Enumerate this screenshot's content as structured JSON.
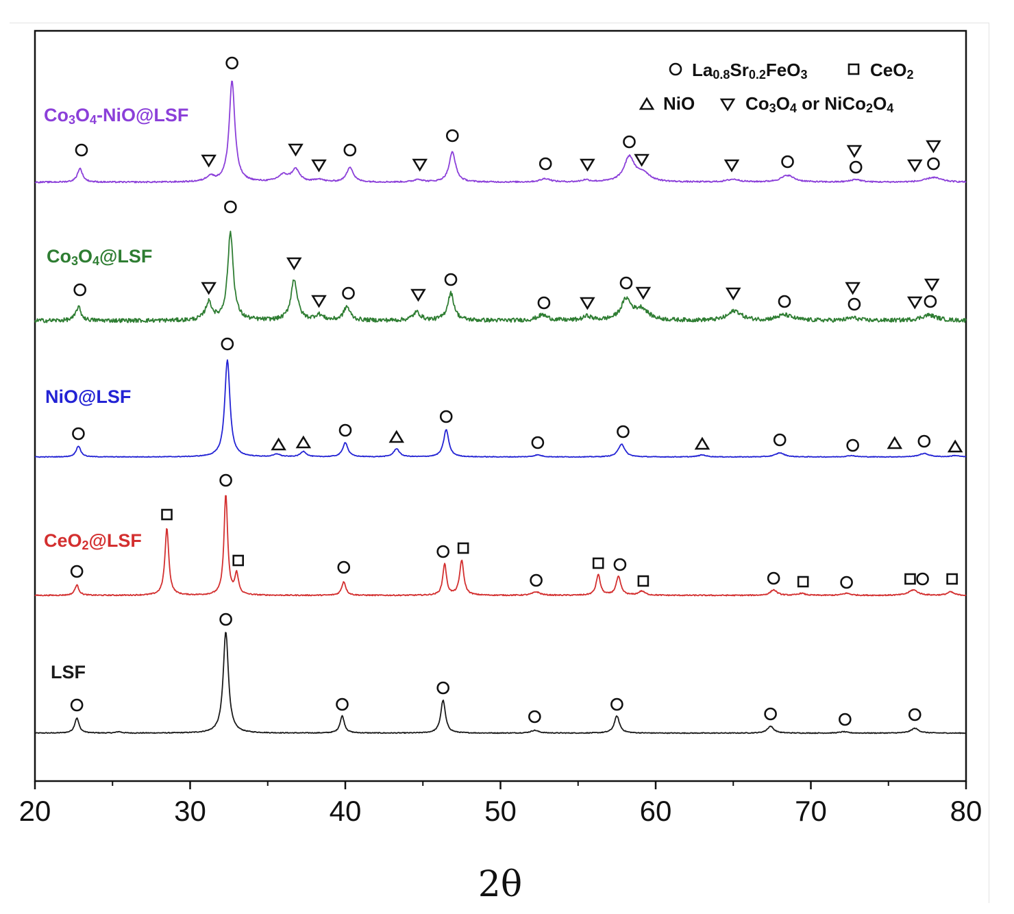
{
  "chart_data": {
    "type": "line",
    "title": "",
    "xlabel": "2θ",
    "ylabel": "",
    "xlim": [
      20,
      80
    ],
    "xticks": [
      "20",
      "30",
      "40",
      "50",
      "60",
      "70",
      "80"
    ],
    "xtick_values": [
      20,
      30,
      40,
      50,
      60,
      70,
      80
    ],
    "grid": false,
    "legend_position": "top-right",
    "legend": [
      {
        "symbol": "circle",
        "label": "La0.8Sr0.2FeO3",
        "parts": [
          {
            "t": "La"
          },
          {
            "t": "0.8",
            "sub": true
          },
          {
            "t": "Sr"
          },
          {
            "t": "0.2",
            "sub": true
          },
          {
            "t": "FeO"
          },
          {
            "t": "3",
            "sub": true
          }
        ]
      },
      {
        "symbol": "square",
        "label": "CeO2",
        "parts": [
          {
            "t": "CeO"
          },
          {
            "t": "2",
            "sub": true
          }
        ]
      },
      {
        "symbol": "triangle-up",
        "label": "NiO",
        "parts": [
          {
            "t": "NiO"
          }
        ]
      },
      {
        "symbol": "triangle-down",
        "label": "Co3O4 or NiCo2O4",
        "parts": [
          {
            "t": "Co"
          },
          {
            "t": "3",
            "sub": true
          },
          {
            "t": "O"
          },
          {
            "t": "4",
            "sub": true
          },
          {
            "t": " or NiCo"
          },
          {
            "t": "2",
            "sub": true
          },
          {
            "t": "O"
          },
          {
            "t": "4",
            "sub": true
          }
        ]
      }
    ],
    "series": [
      {
        "name": "LSF",
        "label": "LSF",
        "label_parts": [
          {
            "t": "LSF"
          }
        ],
        "color": "#1a1a1a",
        "offset": 0,
        "noise": 0.6,
        "peaks": [
          [
            22.7,
            22,
            0.17
          ],
          [
            32.3,
            148,
            0.2
          ],
          [
            39.8,
            25,
            0.17
          ],
          [
            46.3,
            48,
            0.18
          ],
          [
            52.2,
            4,
            0.3
          ],
          [
            57.5,
            25,
            0.2
          ],
          [
            67.4,
            10,
            0.25
          ],
          [
            72.1,
            2,
            0.3
          ],
          [
            76.7,
            7,
            0.3
          ],
          [
            25.4,
            2,
            0.2
          ]
        ],
        "markers": [
          [
            "circle",
            22.7,
            41
          ],
          [
            "circle",
            32.3,
            166
          ],
          [
            "circle",
            39.8,
            42
          ],
          [
            "circle",
            46.3,
            66
          ],
          [
            "circle",
            52.2,
            24
          ],
          [
            "circle",
            57.5,
            42
          ],
          [
            "circle",
            67.4,
            28
          ],
          [
            "circle",
            72.2,
            20
          ],
          [
            "circle",
            76.7,
            27
          ]
        ]
      },
      {
        "name": "CeO2@LSF",
        "label": "CeO2@LSF",
        "label_parts": [
          {
            "t": "CeO"
          },
          {
            "t": "2",
            "sub": true
          },
          {
            "t": "@LSF"
          }
        ],
        "color": "#d32f2f",
        "offset": 201,
        "noise": 0.8,
        "peaks": [
          [
            22.7,
            15,
            0.16
          ],
          [
            28.5,
            98,
            0.15
          ],
          [
            32.3,
            147,
            0.14
          ],
          [
            33.0,
            30,
            0.14
          ],
          [
            39.9,
            20,
            0.16
          ],
          [
            46.4,
            46,
            0.14
          ],
          [
            47.5,
            51,
            0.16
          ],
          [
            52.3,
            5,
            0.3
          ],
          [
            56.3,
            30,
            0.16
          ],
          [
            57.6,
            27,
            0.18
          ],
          [
            59.1,
            6,
            0.25
          ],
          [
            67.6,
            8,
            0.25
          ],
          [
            69.4,
            3,
            0.25
          ],
          [
            72.3,
            3,
            0.3
          ],
          [
            76.6,
            8,
            0.35
          ],
          [
            79.0,
            5,
            0.25
          ]
        ],
        "markers": [
          [
            "circle",
            22.7,
            35
          ],
          [
            "square",
            28.5,
            118
          ],
          [
            "circle",
            32.3,
            168
          ],
          [
            "square",
            33.1,
            51
          ],
          [
            "circle",
            39.9,
            41
          ],
          [
            "circle",
            46.3,
            64
          ],
          [
            "square",
            47.6,
            69
          ],
          [
            "circle",
            52.3,
            22
          ],
          [
            "square",
            56.3,
            47
          ],
          [
            "circle",
            57.7,
            45
          ],
          [
            "square",
            59.2,
            21
          ],
          [
            "circle",
            67.6,
            25
          ],
          [
            "square",
            69.5,
            20
          ],
          [
            "circle",
            72.3,
            19
          ],
          [
            "square",
            76.4,
            24
          ],
          [
            "circle",
            77.2,
            24
          ],
          [
            "square",
            79.1,
            24
          ]
        ]
      },
      {
        "name": "NiO@LSF",
        "label": "NiO@LSF",
        "label_parts": [
          {
            "t": "NiO@LSF"
          }
        ],
        "color": "#2323d4",
        "offset": 403,
        "noise": 0.5,
        "peaks": [
          [
            22.8,
            16,
            0.18
          ],
          [
            32.4,
            142,
            0.2
          ],
          [
            35.6,
            4,
            0.25
          ],
          [
            37.3,
            8,
            0.22
          ],
          [
            40.0,
            21,
            0.2
          ],
          [
            43.3,
            12,
            0.22
          ],
          [
            46.5,
            40,
            0.2
          ],
          [
            52.4,
            3,
            0.3
          ],
          [
            57.8,
            19,
            0.25
          ],
          [
            63.0,
            3,
            0.3
          ],
          [
            68.0,
            6,
            0.35
          ],
          [
            72.6,
            2,
            0.35
          ],
          [
            77.3,
            5,
            0.4
          ],
          [
            79.3,
            2,
            0.3
          ]
        ],
        "markers": [
          [
            "circle",
            22.8,
            34
          ],
          [
            "circle",
            32.4,
            165
          ],
          [
            "triangle-up",
            35.7,
            18
          ],
          [
            "triangle-up",
            37.3,
            21
          ],
          [
            "circle",
            40.0,
            39
          ],
          [
            "triangle-up",
            43.3,
            29
          ],
          [
            "circle",
            46.5,
            59
          ],
          [
            "circle",
            52.4,
            21
          ],
          [
            "circle",
            57.9,
            37
          ],
          [
            "triangle-up",
            63.0,
            19
          ],
          [
            "circle",
            68.0,
            25
          ],
          [
            "circle",
            72.7,
            17
          ],
          [
            "triangle-up",
            75.4,
            20
          ],
          [
            "circle",
            77.3,
            23
          ],
          [
            "triangle-up",
            79.3,
            15
          ]
        ]
      },
      {
        "name": "Co3O4@LSF",
        "label": "Co3O4@LSF",
        "label_parts": [
          {
            "t": "Co"
          },
          {
            "t": "3",
            "sub": true
          },
          {
            "t": "O"
          },
          {
            "t": "4",
            "sub": true
          },
          {
            "t": "@LSF"
          }
        ],
        "color": "#2e7d32",
        "offset": 602,
        "noise": 3.0,
        "peaks": [
          [
            22.8,
            20,
            0.2
          ],
          [
            31.2,
            26,
            0.25
          ],
          [
            32.6,
            128,
            0.22
          ],
          [
            36.7,
            60,
            0.25
          ],
          [
            38.3,
            8,
            0.3
          ],
          [
            40.1,
            20,
            0.25
          ],
          [
            44.6,
            12,
            0.3
          ],
          [
            46.8,
            40,
            0.25
          ],
          [
            52.7,
            8,
            0.4
          ],
          [
            55.6,
            6,
            0.3
          ],
          [
            58.1,
            30,
            0.4
          ],
          [
            59.1,
            16,
            0.5
          ],
          [
            65.1,
            14,
            0.5
          ],
          [
            68.3,
            8,
            0.6
          ],
          [
            72.7,
            4,
            0.4
          ],
          [
            77.6,
            8,
            0.6
          ]
        ],
        "markers": [
          [
            "circle",
            22.9,
            45
          ],
          [
            "triangle-down",
            31.2,
            48
          ],
          [
            "circle",
            32.6,
            166
          ],
          [
            "triangle-down",
            36.7,
            84
          ],
          [
            "triangle-down",
            38.3,
            29
          ],
          [
            "circle",
            40.2,
            40
          ],
          [
            "triangle-down",
            44.7,
            38
          ],
          [
            "circle",
            46.8,
            60
          ],
          [
            "circle",
            52.8,
            26
          ],
          [
            "triangle-down",
            55.6,
            26
          ],
          [
            "circle",
            58.1,
            55
          ],
          [
            "triangle-down",
            59.2,
            41
          ],
          [
            "triangle-down",
            65.0,
            40
          ],
          [
            "circle",
            68.3,
            28
          ],
          [
            "triangle-down",
            72.7,
            48
          ],
          [
            "circle",
            72.8,
            24
          ],
          [
            "triangle-down",
            76.7,
            27
          ],
          [
            "triangle-down",
            77.8,
            53
          ],
          [
            "circle",
            77.7,
            28
          ]
        ]
      },
      {
        "name": "Co3O4-NiO@LSF",
        "label": "Co3O4-NiO@LSF",
        "label_parts": [
          {
            "t": "Co"
          },
          {
            "t": "3",
            "sub": true
          },
          {
            "t": "O"
          },
          {
            "t": "4",
            "sub": true
          },
          {
            "t": "-NiO@LSF"
          }
        ],
        "color": "#8b3fd9",
        "offset": 804,
        "noise": 1.0,
        "peaks": [
          [
            22.9,
            20,
            0.2
          ],
          [
            31.3,
            8,
            0.3
          ],
          [
            32.7,
            148,
            0.22
          ],
          [
            36.0,
            10,
            0.4
          ],
          [
            36.8,
            18,
            0.3
          ],
          [
            38.3,
            4,
            0.3
          ],
          [
            40.3,
            22,
            0.25
          ],
          [
            44.7,
            4,
            0.3
          ],
          [
            46.9,
            44,
            0.25
          ],
          [
            52.9,
            5,
            0.4
          ],
          [
            55.5,
            3,
            0.3
          ],
          [
            58.3,
            36,
            0.4
          ],
          [
            59.2,
            12,
            0.5
          ],
          [
            65.0,
            4,
            0.5
          ],
          [
            68.5,
            10,
            0.5
          ],
          [
            72.9,
            4,
            0.4
          ],
          [
            77.9,
            7,
            0.6
          ]
        ],
        "markers": [
          [
            "circle",
            23.0,
            47
          ],
          [
            "triangle-down",
            31.2,
            32
          ],
          [
            "circle",
            32.7,
            174
          ],
          [
            "triangle-down",
            36.8,
            48
          ],
          [
            "triangle-down",
            38.3,
            25
          ],
          [
            "circle",
            40.3,
            47
          ],
          [
            "triangle-down",
            44.8,
            26
          ],
          [
            "circle",
            46.9,
            68
          ],
          [
            "circle",
            52.9,
            27
          ],
          [
            "triangle-down",
            55.6,
            26
          ],
          [
            "circle",
            58.3,
            59
          ],
          [
            "triangle-down",
            59.1,
            33
          ],
          [
            "triangle-down",
            64.9,
            25
          ],
          [
            "circle",
            68.5,
            30
          ],
          [
            "triangle-down",
            72.8,
            46
          ],
          [
            "circle",
            72.9,
            22
          ],
          [
            "triangle-down",
            76.7,
            25
          ],
          [
            "triangle-down",
            77.9,
            53
          ],
          [
            "circle",
            77.9,
            27
          ]
        ]
      }
    ]
  }
}
